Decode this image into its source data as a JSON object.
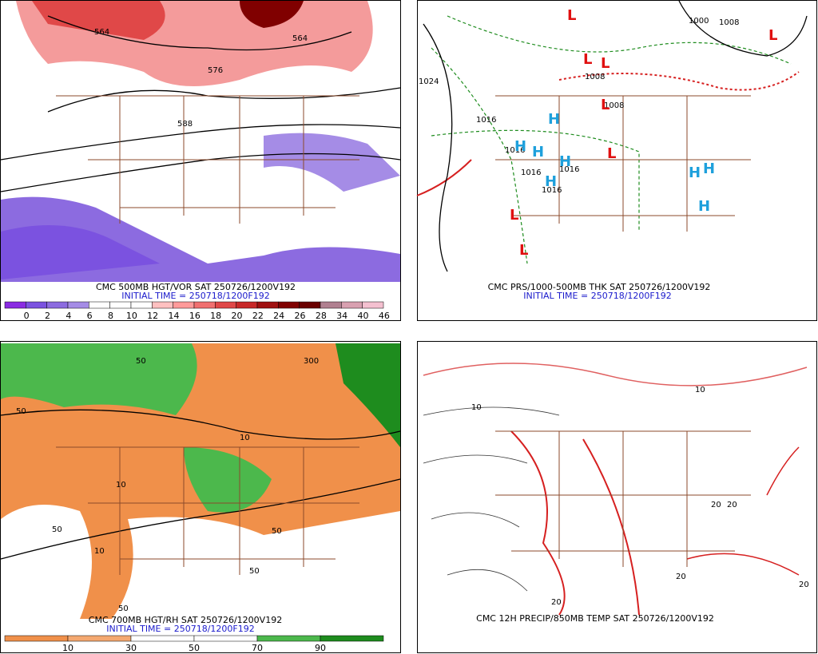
{
  "panels": [
    {
      "caption": "CMC 500MB HGT/VOR SAT 250726/1200V192",
      "initial_time": "INITIAL TIME = 250718/1200F192",
      "contour_labels": [
        "564",
        "564",
        "576",
        "588"
      ],
      "colorbar": {
        "labels": [
          0,
          2,
          4,
          6,
          8,
          10,
          12,
          14,
          16,
          18,
          20,
          22,
          24,
          26,
          28,
          34,
          40,
          46
        ],
        "colors": [
          "#8a2be2",
          "#7b52e0",
          "#8c6be0",
          "#a58ce6",
          "#ffffff",
          "#ffffff",
          "#ffffff",
          "#ffc0c0",
          "#ff9a9a",
          "#f07070",
          "#e04848",
          "#c82828",
          "#a01010",
          "#800000",
          "#6a0000",
          "#b08090",
          "#d8a0b0",
          "#f4c0d0"
        ]
      }
    },
    {
      "caption": "CMC PRS/1000-500MB THK SAT 250726/1200V192",
      "initial_time": "INITIAL TIME = 250718/1200F192",
      "contour_labels": [
        "1024",
        "1016",
        "1016",
        "1016",
        "1016",
        "1016",
        "1008",
        "1000",
        "1008",
        "1008"
      ],
      "lows": [
        "L",
        "L",
        "L",
        "L",
        "L",
        "L",
        "L",
        "L"
      ],
      "highs": [
        "H",
        "H",
        "H",
        "H",
        "H",
        "H",
        "H",
        "H"
      ]
    },
    {
      "caption": "CMC 700MB HGT/RH SAT 250726/1200V192",
      "initial_time": "INITIAL TIME = 250718/1200F192",
      "contour_labels": [
        "50",
        "50",
        "10",
        "10",
        "50",
        "50",
        "300",
        "50",
        "50",
        "10"
      ],
      "colorbar": {
        "labels": [
          10,
          30,
          50,
          70,
          90
        ],
        "colors": [
          "#f0904a",
          "#f4a870",
          "#ffffff",
          "#ffffff",
          "#4cb84c",
          "#1e8c1e"
        ]
      }
    },
    {
      "caption": "CMC 12H PRECIP/850MB TEMP SAT 250726/1200V192",
      "contour_labels": [
        "10",
        "10",
        "20",
        "20",
        "20",
        "20",
        "20"
      ]
    }
  ]
}
